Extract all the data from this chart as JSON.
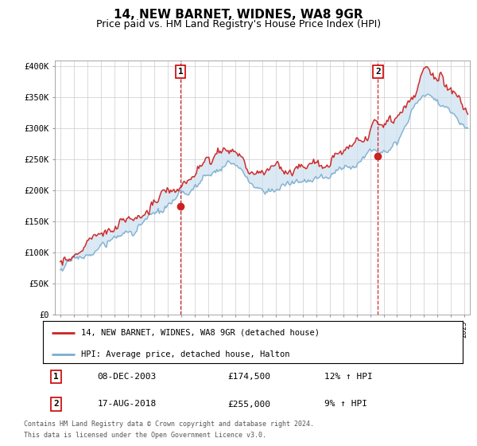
{
  "title": "14, NEW BARNET, WIDNES, WA8 9GR",
  "subtitle": "Price paid vs. HM Land Registry's House Price Index (HPI)",
  "ylabel_ticks": [
    "£0",
    "£50K",
    "£100K",
    "£150K",
    "£200K",
    "£250K",
    "£300K",
    "£350K",
    "£400K"
  ],
  "ytick_values": [
    0,
    50000,
    100000,
    150000,
    200000,
    250000,
    300000,
    350000,
    400000
  ],
  "ylim": [
    0,
    410000
  ],
  "xlim_left": 1994.6,
  "xlim_right": 2025.4,
  "sale1_date": "08-DEC-2003",
  "sale1_price": 174500,
  "sale1_x": 2003.917,
  "sale1_hpi": "12% ↑ HPI",
  "sale2_date": "17-AUG-2018",
  "sale2_price": 255000,
  "sale2_x": 2018.583,
  "sale2_hpi": "9% ↑ HPI",
  "legend_line1": "14, NEW BARNET, WIDNES, WA8 9GR (detached house)",
  "legend_line2": "HPI: Average price, detached house, Halton",
  "footer1": "Contains HM Land Registry data © Crown copyright and database right 2024.",
  "footer2": "This data is licensed under the Open Government Licence v3.0.",
  "hpi_color": "#7aadcf",
  "hpi_fill_color": "#cce0f0",
  "price_color": "#cc2222",
  "vline_color": "#cc0000",
  "background_color": "#ffffff",
  "grid_color": "#cccccc",
  "title_fontsize": 11,
  "subtitle_fontsize": 9
}
